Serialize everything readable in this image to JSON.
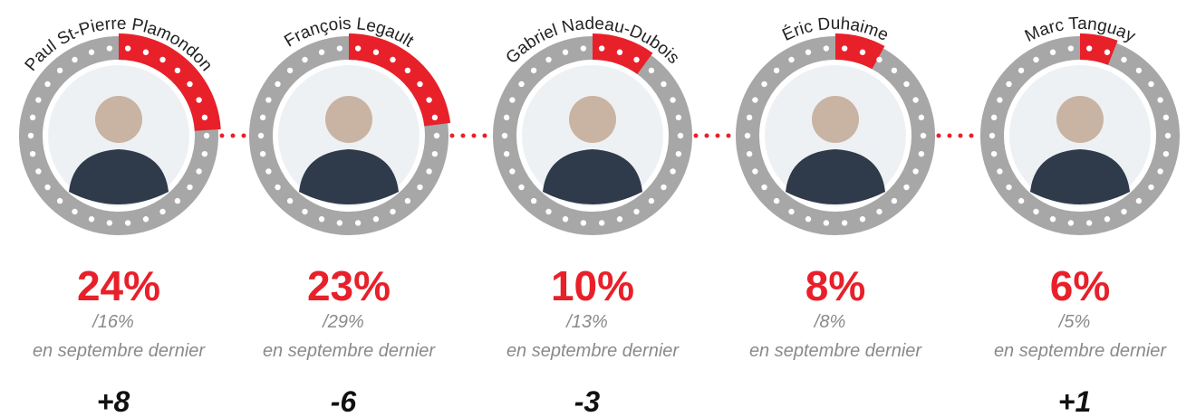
{
  "chart_data": {
    "type": "gauge",
    "categories": [
      "Paul St-Pierre Plamondon",
      "François Legault",
      "Gabriel Nadeau-Dubois",
      "Éric Duhaime",
      "Marc Tanguay"
    ],
    "values": [
      24,
      23,
      10,
      8,
      6
    ],
    "value_labels": [
      "24%",
      "23%",
      "10%",
      "8%",
      "6%"
    ],
    "previous_values": [
      16,
      29,
      13,
      8,
      5
    ],
    "previous_labels": [
      "/16%",
      "/29%",
      "/13%",
      "/8%",
      "/5%"
    ],
    "note": "en septembre dernier",
    "changes": [
      8,
      -6,
      -3,
      null,
      1
    ],
    "change_labels": [
      "+8",
      "-6",
      "-3",
      null,
      "+1"
    ],
    "ylim": [
      0,
      100
    ],
    "color": "#e8202a"
  }
}
